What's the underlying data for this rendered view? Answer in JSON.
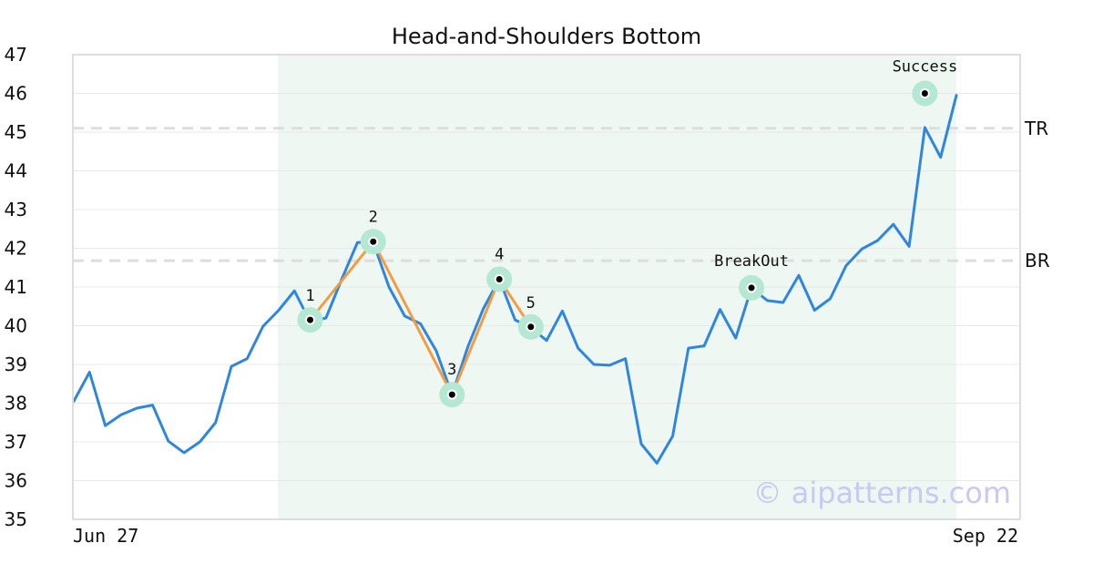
{
  "chart_data": {
    "type": "line",
    "title": "Head-and-Shoulders Bottom",
    "xlabel": "",
    "ylabel": "",
    "ylim": [
      35,
      47
    ],
    "yticks": [
      35,
      36,
      37,
      38,
      39,
      40,
      41,
      42,
      43,
      44,
      45,
      46,
      47
    ],
    "grid": "horizontal",
    "x_tick_labels": [
      "Jun 27",
      "Sep 22"
    ],
    "x_index_range": [
      0,
      57
    ],
    "pattern_region": {
      "start_index": 13,
      "end_index": 57
    },
    "levels": [
      {
        "label": "TR",
        "value": 45.1
      },
      {
        "label": "BR",
        "value": 41.68
      }
    ],
    "series": [
      {
        "values": [
          38.05,
          38.8,
          37.42,
          37.7,
          37.87,
          37.95,
          37.02,
          36.72,
          37.0,
          37.5,
          38.95,
          39.15,
          39.98,
          40.4,
          40.9,
          40.1,
          40.2,
          41.2,
          42.15,
          42.15,
          41.0,
          40.25,
          40.05,
          39.35,
          38.22,
          39.45,
          40.45,
          41.2,
          40.15,
          39.95,
          39.62,
          40.38,
          39.42,
          39.0,
          38.98,
          39.15,
          36.95,
          36.45,
          37.15,
          39.42,
          39.48,
          40.42,
          39.68,
          40.98,
          40.65,
          40.6,
          41.3,
          40.4,
          40.7,
          41.55,
          41.98,
          42.2,
          42.62,
          42.05,
          45.12,
          44.35,
          45.95
        ]
      }
    ],
    "pattern_points": [
      {
        "label": "1",
        "index": 15,
        "value": 40.15
      },
      {
        "label": "2",
        "index": 19,
        "value": 42.17
      },
      {
        "label": "3",
        "index": 24,
        "value": 38.22
      },
      {
        "label": "4",
        "index": 27,
        "value": 41.2
      },
      {
        "label": "5",
        "index": 29,
        "value": 39.97
      }
    ],
    "markers": [
      {
        "label": "BreakOut",
        "index": 43,
        "value": 40.98
      },
      {
        "label": "Success",
        "index": 54,
        "value": 46.0
      }
    ],
    "watermark": "© aipatterns.com",
    "colors": {
      "price_line": "#2e86de",
      "pattern_line": "#f39c42",
      "highlight": "#b5e8d2",
      "region": "#eef7f2",
      "level_line": "#dddddd",
      "grid": "#e8e8e8",
      "frame": "#dddddd",
      "watermark": "#c9c9f2"
    }
  }
}
